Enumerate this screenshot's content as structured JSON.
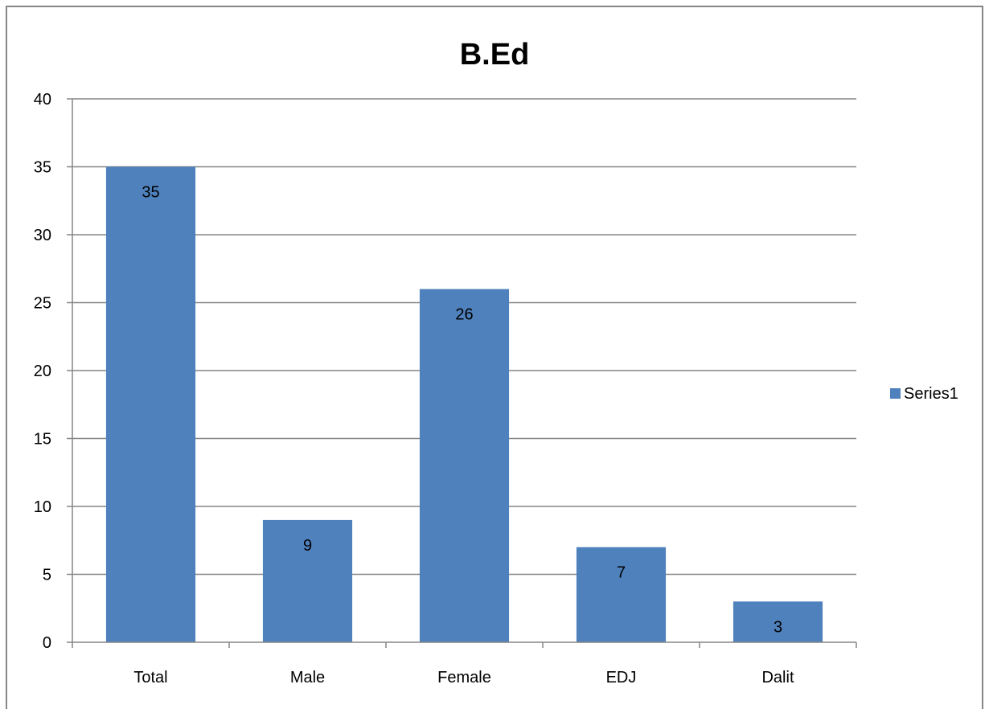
{
  "chart_data": {
    "type": "bar",
    "title": "B.Ed",
    "xlabel": "",
    "ylabel": "",
    "categories": [
      "Total",
      "Male",
      "Female",
      "EDJ",
      "Dalit"
    ],
    "series": [
      {
        "name": "Series1",
        "values": [
          35,
          9,
          26,
          7,
          3
        ]
      }
    ],
    "ylim": [
      0,
      40
    ],
    "yticks": [
      0,
      5,
      10,
      15,
      20,
      25,
      30,
      35,
      40
    ],
    "grid": true,
    "legend_position": "right",
    "data_labels": true,
    "colors": {
      "bar": "#4f81bd",
      "gridline": "#868686",
      "border": "#868686",
      "text": "#000000"
    }
  }
}
